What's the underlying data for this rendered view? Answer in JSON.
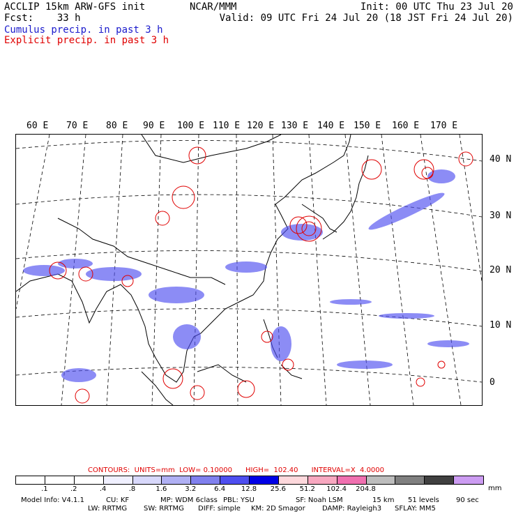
{
  "header": {
    "model": "ACCLIP 15km ARW-GFS init",
    "fcst": "Fcst:    33 h",
    "org": "NCAR/MMM",
    "init": "Init: 00 UTC Thu 23 Jul 20",
    "valid": "Valid: 09 UTC Fri 24 Jul 20 (18 JST Fri 24 Jul 20)",
    "cumulus": "Cumulus precip. in past 3 h",
    "explicit": "Explicit precip. in past 3 h"
  },
  "colors": {
    "cumulus": "#1a1acc",
    "explicit": "#e00000",
    "coast": "#000000"
  },
  "map": {
    "lon_labels": [
      "60 E",
      "70 E",
      "80 E",
      "90 E",
      "100 E",
      "110 E",
      "120 E",
      "130 E",
      "140 E",
      "150 E",
      "160 E",
      "170 E"
    ],
    "lat_labels": [
      "40 N",
      "30 N",
      "20 N",
      "10 N",
      "0"
    ]
  },
  "contours": {
    "text": "CONTOURS:  UNITS=mm  LOW= 0.10000      HIGH=  102.40      INTERVAL=X  4.0000"
  },
  "colorbar": {
    "colors": [
      "#ffffff",
      "#ffffff",
      "#ffffff",
      "#f0f0ff",
      "#d8d8fb",
      "#b0b0f4",
      "#8080ee",
      "#4e4ef0",
      "#0000e6",
      "#fdd8dc",
      "#f8a8c0",
      "#f070b0",
      "#bdbdbd",
      "#808080",
      "#404040",
      "#cc9cf2"
    ],
    "ticks": [
      ".1",
      ".2",
      ".4",
      ".8",
      "1.6",
      "3.2",
      "6.4",
      "12.8",
      "25.6",
      "51.2",
      "102.4",
      "204.8"
    ],
    "unit": "mm"
  },
  "model_info": {
    "line1": {
      "version": "Model Info: V4.1.1",
      "cu": "CU: KF",
      "mp": "MP: WDM 6class",
      "pbl": "PBL: YSU",
      "sf": "SF: Noah LSM",
      "res": "15 km",
      "levels": "51 levels",
      "dt": "90 sec"
    },
    "line2": {
      "lw": "LW: RRTMG",
      "sw": "SW: RRTMG",
      "diff": "DIFF: simple",
      "km": "KM: 2D Smagor",
      "damp": "DAMP: Rayleigh3",
      "sflay": "SFLAY: MM5"
    }
  }
}
